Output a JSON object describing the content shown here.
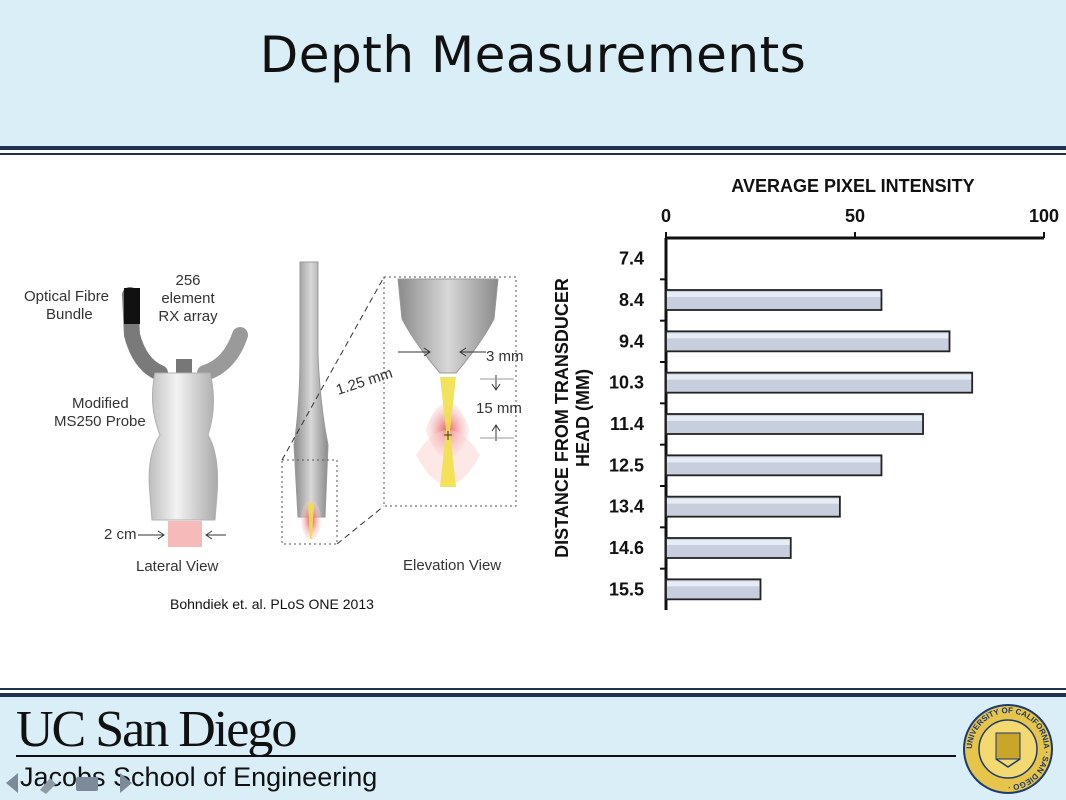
{
  "slide": {
    "title": "Depth Measurements",
    "citation": "Bohndiek et. al. PLoS ONE 2013"
  },
  "figure": {
    "labels": {
      "fibre": "Optical Fibre\nBundle",
      "array": "256\nelement\nRX array",
      "probe": "Modified\nMS250 Probe",
      "width": "2 cm",
      "lateral": "Lateral View",
      "elevation": "Elevation View",
      "gap": "3 mm",
      "offset": "1.25 mm",
      "depth": "15 mm"
    }
  },
  "footer": {
    "university": "UC San Diego",
    "school": "Jacobs School of Engineering",
    "seal_text": "UNIVERSITY OF CALIFORNIA · SAN DIEGO ·"
  },
  "colors": {
    "header_bg": "#daeef8",
    "rule": "#1f3350",
    "bar_fill": "#c7cfdf"
  },
  "chart_data": {
    "type": "bar",
    "orientation": "horizontal",
    "xlabel": "AVERAGE PIXEL INTENSITY",
    "ylabel": "DISTANCE FROM TRANSDUCER HEAD (MM)",
    "xlim": [
      0,
      100
    ],
    "xticks": [
      "0",
      "50",
      "100"
    ],
    "categories": [
      "7.4",
      "8.4",
      "9.4",
      "10.3",
      "11.4",
      "12.5",
      "13.4",
      "14.6",
      "15.5"
    ],
    "values": [
      0,
      57,
      75,
      81,
      68,
      57,
      46,
      33,
      25
    ]
  }
}
